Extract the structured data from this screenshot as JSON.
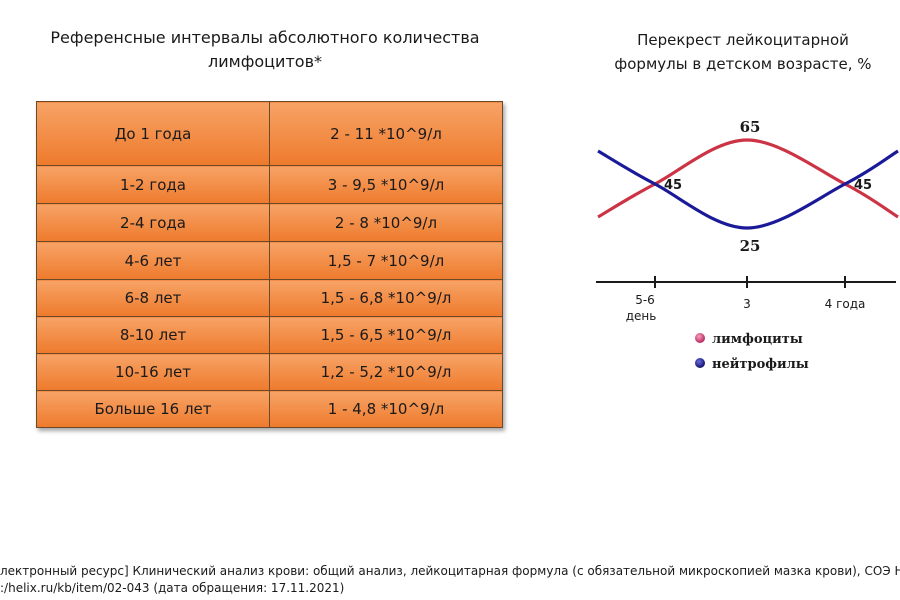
{
  "table": {
    "title_line1": "Референсные интервалы абсолютного количества",
    "title_line2": "лимфоцитов*",
    "rows": [
      {
        "age": "До 1 года",
        "range": "2 - 11 *10^9/л"
      },
      {
        "age": "1-2 года",
        "range": "3 - 9,5 *10^9/л"
      },
      {
        "age": "2-4 года",
        "range": "2 - 8 *10^9/л"
      },
      {
        "age": "4-6 лет",
        "range": "1,5 - 7 *10^9/л"
      },
      {
        "age": "6-8 лет",
        "range": "1,5 - 6,8 *10^9/л"
      },
      {
        "age": "8-10 лет",
        "range": "1,5 - 6,5 *10^9/л"
      },
      {
        "age": "10-16 лет",
        "range": "1,2 - 5,2 *10^9/л"
      },
      {
        "age": "Больше 16 лет",
        "range": "1 - 4,8 *10^9/л"
      }
    ],
    "colors": {
      "cell_top": "#f7a366",
      "cell_bottom": "#ee7a2c",
      "border": "#6b4a2a"
    }
  },
  "chart_data": {
    "type": "line",
    "title_line1": "Перекрест лейкоцитарной",
    "title_line2": "формулы в детском возрасте, %",
    "x_ticks": [
      "5-6 день",
      "3",
      "4 года"
    ],
    "annotations": {
      "first_cross": "45",
      "peak": "65",
      "trough": "25",
      "second_cross": "45"
    },
    "series": [
      {
        "name": "лимфоциты",
        "color": "#cc3344",
        "values": [
          30,
          45,
          65,
          45,
          30
        ]
      },
      {
        "name": "нейтрофилы",
        "color": "#1a1a99",
        "values": [
          60,
          45,
          25,
          45,
          60
        ]
      }
    ],
    "x_positions": [
      "start",
      "5-6 день",
      "3",
      "4 года",
      "end"
    ],
    "legend_marker_colors": {
      "lymph": "#d8437a",
      "neutro": "#1a1a99"
    }
  },
  "footnote": {
    "line1": "лектронный ресурс] Клинический анализ крови: общий анализ, лейкоцитарная формула (с обязательной микроскопией мазка крови), СОЭ Helixbook,",
    "line2": ":/helix.ru/kb/item/02-043  (дата обращения: 17.11.2021)"
  }
}
